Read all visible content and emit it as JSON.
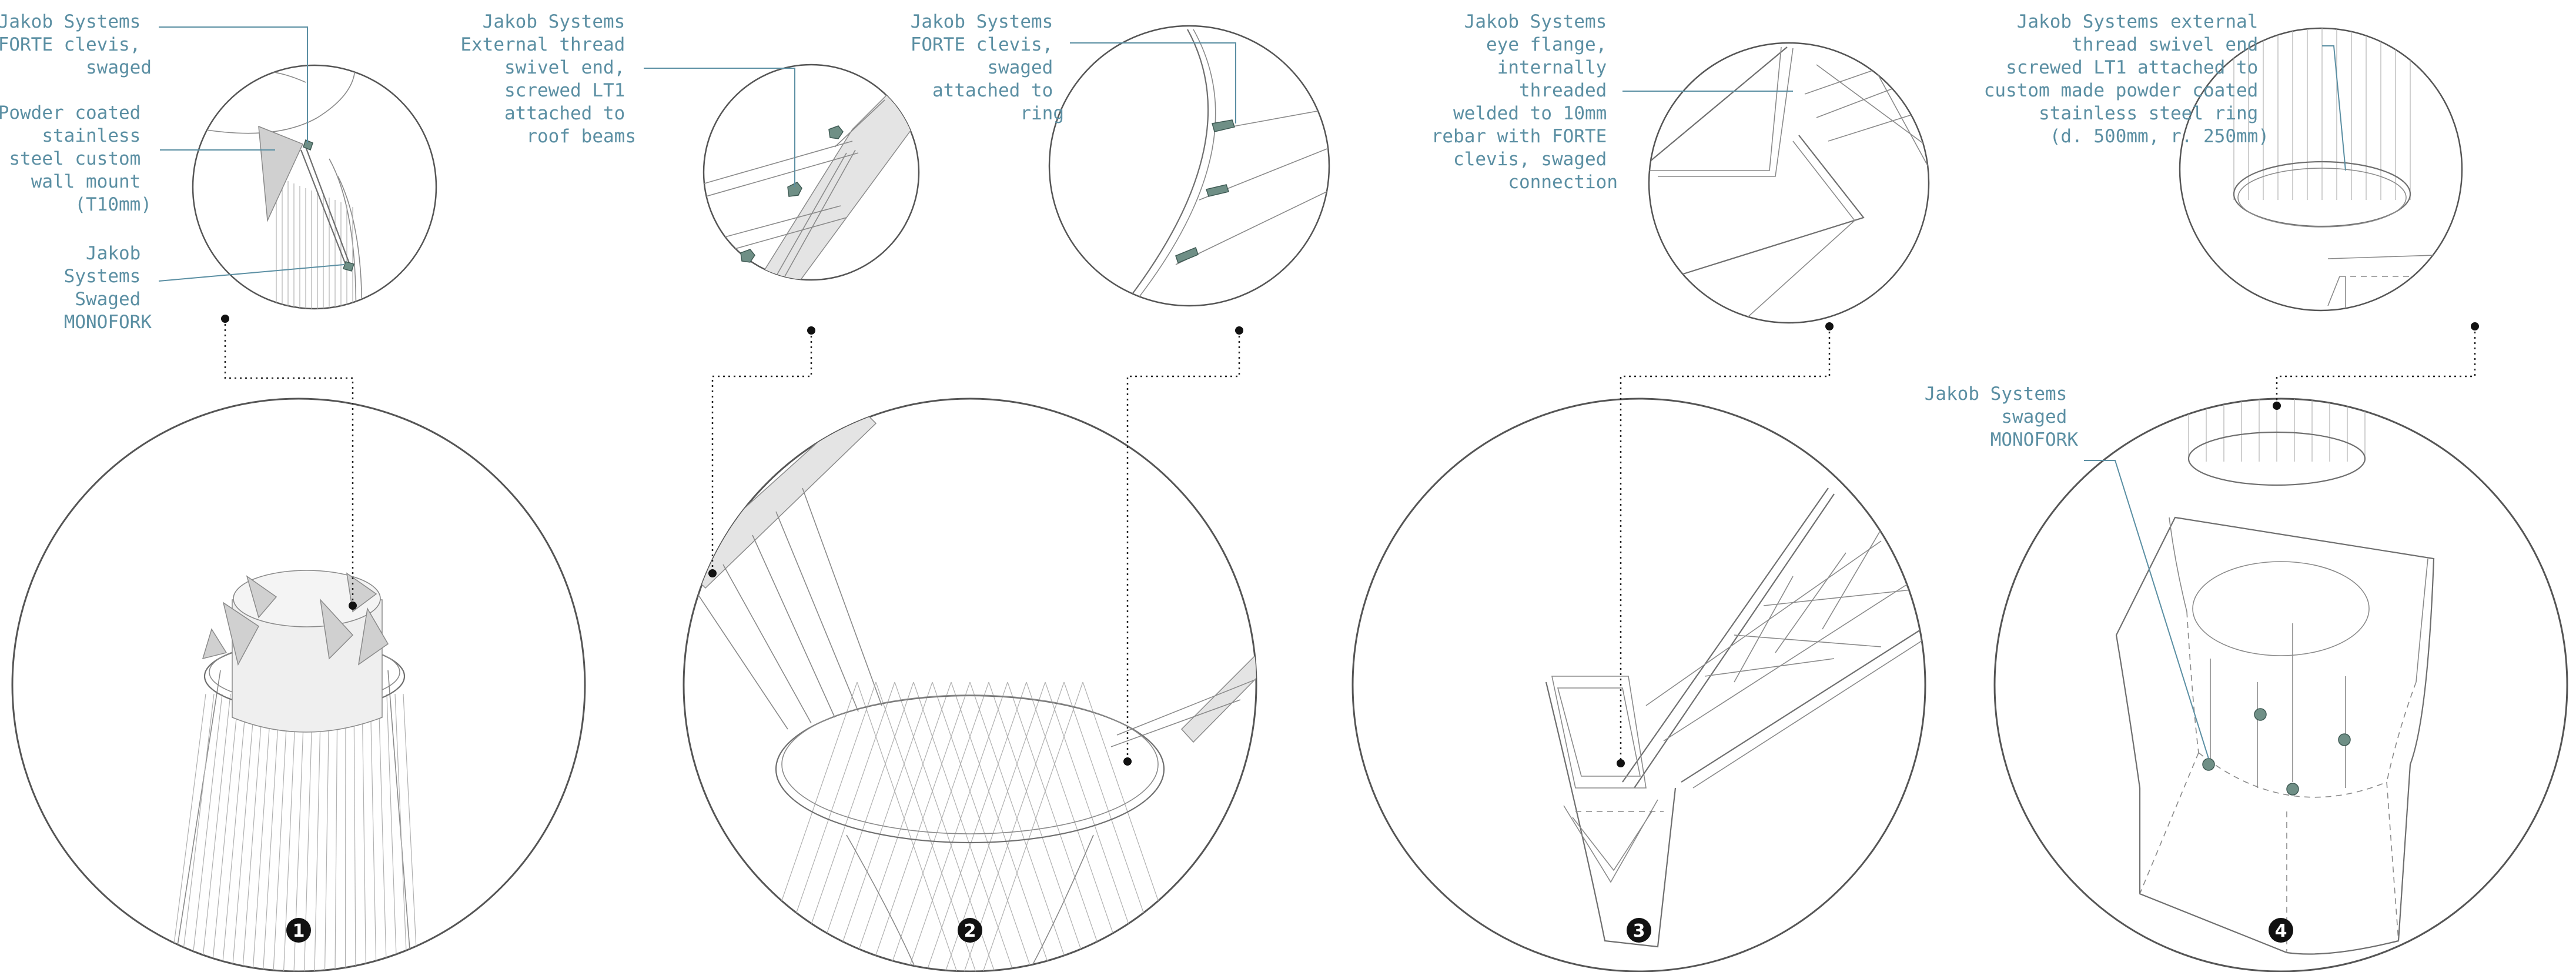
{
  "details": [
    {
      "number": "1",
      "labels": [
        [
          "Jakob Systems",
          "FORTE clevis,",
          "swaged"
        ],
        [
          "Powder coated",
          "stainless",
          "steel custom",
          "wall mount",
          "(T10mm)"
        ],
        [
          "Jakob",
          "Systems",
          "Swaged",
          "MONOFORK"
        ]
      ]
    },
    {
      "number": "2",
      "labels": [
        [
          "Jakob Systems",
          "External thread",
          "swivel end,",
          "screwed LT1",
          "attached to",
          "roof beams"
        ],
        [
          "Jakob Systems",
          "FORTE clevis,",
          "swaged",
          "attached to",
          "ring"
        ]
      ]
    },
    {
      "number": "3",
      "labels": [
        [
          "Jakob Systems",
          "eye flange,",
          "internally",
          "threaded",
          "welded to 10mm",
          "rebar with FORTE",
          "clevis, swaged",
          "connection"
        ]
      ]
    },
    {
      "number": "4",
      "labels": [
        [
          "Jakob Systems external",
          "thread swivel end",
          "screwed LT1 attached to",
          "custom made powder coated",
          "stainless steel ring",
          "(d. 500mm, r. 250mm)"
        ],
        [
          "Jakob Systems",
          "swaged",
          "MONOFORK"
        ]
      ]
    }
  ],
  "colors": {
    "label_text": "#5b8fa3",
    "leader_line": "#5b8fa3",
    "fitting": "#6f8f86",
    "badge": "#111111",
    "line_work": "#8a8a8a"
  }
}
